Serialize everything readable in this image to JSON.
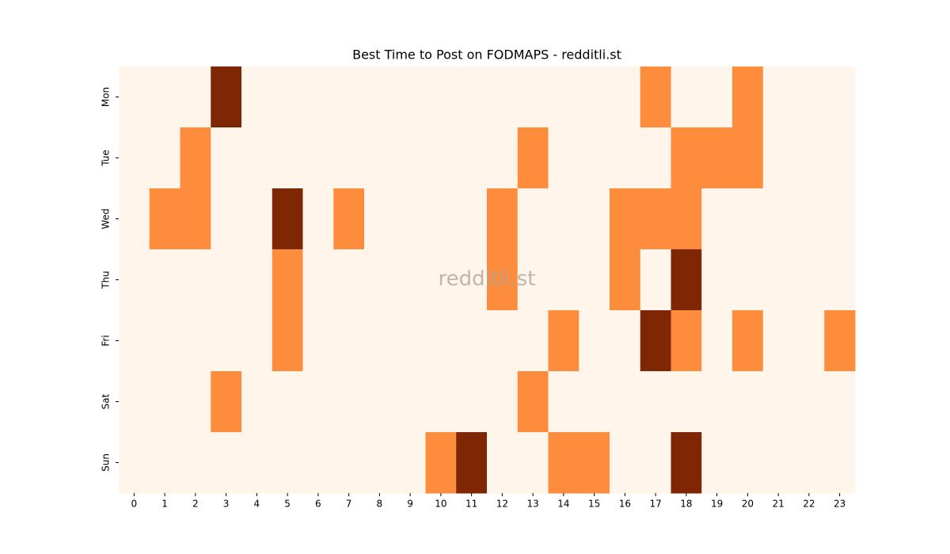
{
  "chart_data": {
    "type": "heatmap",
    "title": "Best Time to Post on FODMAPS - redditli.st",
    "watermark": "redditli.st",
    "x": [
      0,
      1,
      2,
      3,
      4,
      5,
      6,
      7,
      8,
      9,
      10,
      11,
      12,
      13,
      14,
      15,
      16,
      17,
      18,
      19,
      20,
      21,
      22,
      23
    ],
    "categories": [
      "Mon",
      "Tue",
      "Wed",
      "Thu",
      "Fri",
      "Sat",
      "Sun"
    ],
    "z": [
      [
        0,
        0,
        0,
        2,
        0,
        0,
        0,
        0,
        0,
        0,
        0,
        0,
        0,
        0,
        0,
        0,
        0,
        1,
        0,
        0,
        1,
        0,
        0,
        0
      ],
      [
        0,
        0,
        1,
        0,
        0,
        0,
        0,
        0,
        0,
        0,
        0,
        0,
        0,
        1,
        0,
        0,
        0,
        0,
        1,
        1,
        1,
        0,
        0,
        0
      ],
      [
        0,
        1,
        1,
        0,
        0,
        2,
        0,
        1,
        0,
        0,
        0,
        0,
        1,
        0,
        0,
        0,
        1,
        1,
        1,
        0,
        0,
        0,
        0,
        0
      ],
      [
        0,
        0,
        0,
        0,
        0,
        1,
        0,
        0,
        0,
        0,
        0,
        0,
        1,
        0,
        0,
        0,
        1,
        0,
        2,
        0,
        0,
        0,
        0,
        0
      ],
      [
        0,
        0,
        0,
        0,
        0,
        1,
        0,
        0,
        0,
        0,
        0,
        0,
        0,
        0,
        1,
        0,
        0,
        2,
        1,
        0,
        1,
        0,
        0,
        1
      ],
      [
        0,
        0,
        0,
        1,
        0,
        0,
        0,
        0,
        0,
        0,
        0,
        0,
        0,
        1,
        0,
        0,
        0,
        0,
        0,
        0,
        0,
        0,
        0,
        0
      ],
      [
        0,
        0,
        0,
        0,
        0,
        0,
        0,
        0,
        0,
        0,
        1,
        2,
        0,
        0,
        1,
        1,
        0,
        0,
        2,
        0,
        0,
        0,
        0,
        0
      ]
    ],
    "zlim": [
      0,
      2
    ],
    "colorscale": [
      "#fff5eb",
      "#fd8d3c",
      "#7f2704"
    ]
  }
}
